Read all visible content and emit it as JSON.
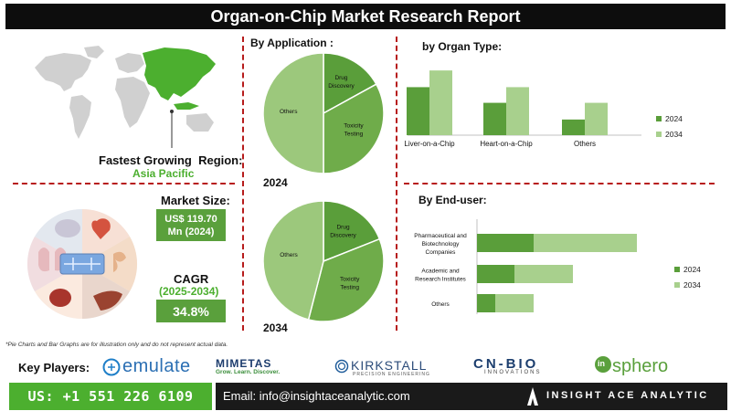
{
  "header": {
    "title": "Organ-on-Chip Market Research Report"
  },
  "region": {
    "label": "Fastest Growing  Region:",
    "value": "Asia Pacific"
  },
  "market_size": {
    "label": "Market Size:",
    "value_line1": "US$ 119.70",
    "value_line2": "Mn (2024)"
  },
  "cagr": {
    "label": "CAGR",
    "period": "(2025-2034)",
    "value": "34.8%"
  },
  "application": {
    "title": "By Application :",
    "year_2024": "2024",
    "year_2034": "2034"
  },
  "organ": {
    "title": "by Organ Type:"
  },
  "enduser": {
    "title": "By End-user:"
  },
  "disclaimer": "*Pie Charts and Bar Graphs are for illustration only and do not represent actual data.",
  "players": {
    "label": "Key Players:",
    "emulate": "emulate",
    "mimetas_line1": "MIMETAS",
    "mimetas_line2": "Grow. Learn. Discover.",
    "kirkstall_line1": "KIRKSTALL",
    "kirkstall_line2": "PRECISION ENGINEERING",
    "cnbio_line1": "CN-BIO",
    "cnbio_line2": "INNOVATIONS",
    "insphero_prefix": "in",
    "insphero_main": "sphero"
  },
  "footer": {
    "phone": "US: +1 551 226 6109",
    "email": "Email: info@insightaceanalytic.com",
    "brand": "INSIGHT ACE ANALYTIC"
  },
  "colors": {
    "dark_green": "#5a9e3a",
    "light_green": "#a8d08d",
    "accent_green": "#4caf2f",
    "divider_red": "#b71c1c"
  },
  "chart_data": [
    {
      "type": "pie",
      "title": "By Application :",
      "year": "2024",
      "labels": [
        "Drug Discovery",
        "Toxicity Testing",
        "Others"
      ],
      "values": [
        17,
        33,
        50
      ],
      "colors": [
        "#5a9e3a",
        "#6fac4a",
        "#9cc87c"
      ]
    },
    {
      "type": "pie",
      "title": "By Application :",
      "year": "2034",
      "labels": [
        "Drug Discovery",
        "Toxicity Testing",
        "Others"
      ],
      "values": [
        19,
        35,
        46
      ],
      "colors": [
        "#5a9e3a",
        "#6fac4a",
        "#9cc87c"
      ]
    },
    {
      "type": "bar",
      "title": "by Organ Type:",
      "categories": [
        "Liver-on-a-Chip",
        "Heart-on-a-Chip",
        "Others"
      ],
      "series": [
        {
          "name": "2024",
          "values": [
            46,
            31,
            15
          ],
          "color": "#5a9e3a"
        },
        {
          "name": "2034",
          "values": [
            62,
            46,
            31
          ],
          "color": "#a8d08d"
        }
      ],
      "legend": "right"
    },
    {
      "type": "bar",
      "orientation": "horizontal",
      "stacked": true,
      "title": "By End-user:",
      "categories": [
        "Pharmaceutical and Biotechnology Companies",
        "Academic and Research Institutes",
        "Others"
      ],
      "category_lines": [
        [
          "Pharmaceutical and",
          "Biotechnology",
          "Companies"
        ],
        [
          "Academic and",
          "Research Institutes"
        ],
        [
          "Others"
        ]
      ],
      "series": [
        {
          "name": "2024",
          "values": [
            62,
            41,
            20
          ],
          "color": "#5a9e3a"
        },
        {
          "name": "2034",
          "values": [
            113,
            64,
            42
          ],
          "color": "#a8d08d"
        }
      ],
      "legend": "right"
    }
  ]
}
